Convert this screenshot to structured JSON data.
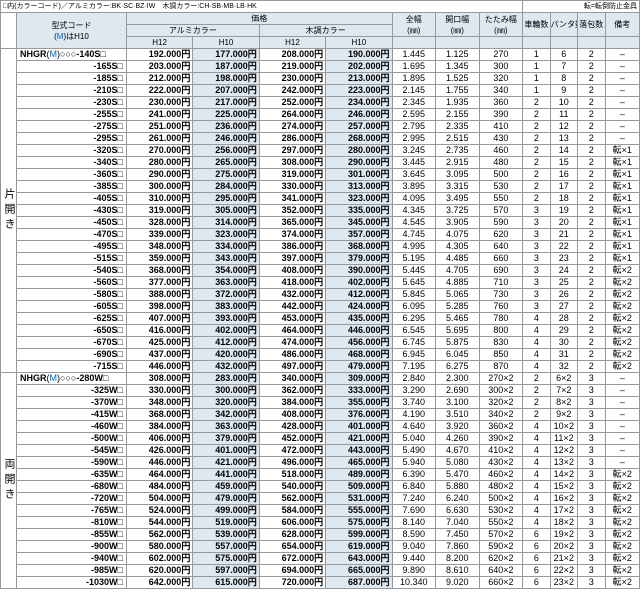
{
  "nk": "□内(カラーコード)／アルミカラー:BK·SC·BZ·IW　木調カラー:CH·SB·MB·LB·HK",
  "nkr": "転=転倒防止金具",
  "h": {
    "c1": "型式コード",
    "c1s": "(M)はH10",
    "c2": "価格",
    "c2a": "アルミカラー",
    "c2b": "木調カラー",
    "c2h1": "H12",
    "c2h2": "H10",
    "c3": "全幅",
    "c4": "開口幅",
    "c5": "たたみ幅",
    "c6": "車輪数",
    "c7": "パンタ数",
    "c8": "落包数",
    "c9": "備考",
    "mm": "(㎜)"
  },
  "s": [
    {
      "lbl": "片開き",
      "pre": "NHGR(M)○○○",
      "rows": [
        {
          "c": "-140S□",
          "p": [
            "192.000円",
            "177.000円",
            "208.000円",
            "190.000円"
          ],
          "d": [
            "1.445",
            "1.125",
            "270",
            "1",
            "6",
            "2",
            "–"
          ]
        },
        {
          "c": "-165S□",
          "p": [
            "203.000円",
            "187.000円",
            "219.000円",
            "202.000円"
          ],
          "d": [
            "1.695",
            "1.345",
            "300",
            "1",
            "7",
            "2",
            "–"
          ]
        },
        {
          "c": "-185S□",
          "p": [
            "212.000円",
            "198.000円",
            "230.000円",
            "213.000円"
          ],
          "d": [
            "1.895",
            "1.525",
            "320",
            "1",
            "8",
            "2",
            "–"
          ]
        },
        {
          "c": "-210S□",
          "p": [
            "222.000円",
            "207.000円",
            "242.000円",
            "223.000円"
          ],
          "d": [
            "2.145",
            "1.755",
            "340",
            "1",
            "9",
            "2",
            "–"
          ]
        },
        {
          "c": "-230S□",
          "p": [
            "230.000円",
            "217.000円",
            "252.000円",
            "234.000円"
          ],
          "d": [
            "2.345",
            "1.935",
            "360",
            "2",
            "10",
            "2",
            "–"
          ]
        },
        {
          "c": "-255S□",
          "p": [
            "241.000円",
            "225.000円",
            "264.000円",
            "246.000円"
          ],
          "d": [
            "2.595",
            "2.155",
            "390",
            "2",
            "11",
            "2",
            "–"
          ]
        },
        {
          "c": "-275S□",
          "p": [
            "251.000円",
            "236.000円",
            "274.000円",
            "257.000円"
          ],
          "d": [
            "2.795",
            "2.335",
            "410",
            "2",
            "12",
            "2",
            "–"
          ]
        },
        {
          "c": "-295S□",
          "p": [
            "261.000円",
            "246.000円",
            "286.000円",
            "268.000円"
          ],
          "d": [
            "2.995",
            "2.515",
            "430",
            "2",
            "13",
            "2",
            "–"
          ]
        },
        {
          "c": "-320S□",
          "p": [
            "270.000円",
            "256.000円",
            "297.000円",
            "280.000円"
          ],
          "d": [
            "3.245",
            "2.735",
            "460",
            "2",
            "14",
            "2",
            "転×1"
          ]
        },
        {
          "c": "-340S□",
          "p": [
            "280.000円",
            "265.000円",
            "308.000円",
            "290.000円"
          ],
          "d": [
            "3.445",
            "2.915",
            "480",
            "2",
            "15",
            "2",
            "転×1"
          ]
        },
        {
          "c": "-360S□",
          "p": [
            "290.000円",
            "275.000円",
            "319.000円",
            "301.000円"
          ],
          "d": [
            "3.645",
            "3.095",
            "500",
            "2",
            "16",
            "2",
            "転×1"
          ]
        },
        {
          "c": "-385S□",
          "p": [
            "300.000円",
            "284.000円",
            "330.000円",
            "313.000円"
          ],
          "d": [
            "3.895",
            "3.315",
            "530",
            "2",
            "17",
            "2",
            "転×1"
          ]
        },
        {
          "c": "-405S□",
          "p": [
            "310.000円",
            "295.000円",
            "341.000円",
            "323.000円"
          ],
          "d": [
            "4.095",
            "3.495",
            "550",
            "2",
            "18",
            "2",
            "転×1"
          ]
        },
        {
          "c": "-430S□",
          "p": [
            "319.000円",
            "305.000円",
            "352.000円",
            "335.000円"
          ],
          "d": [
            "4.345",
            "3.725",
            "570",
            "3",
            "19",
            "2",
            "転×1"
          ]
        },
        {
          "c": "-450S□",
          "p": [
            "328.000円",
            "314.000円",
            "365.000円",
            "345.000円"
          ],
          "d": [
            "4.545",
            "3.905",
            "590",
            "3",
            "20",
            "2",
            "転×1"
          ]
        },
        {
          "c": "-470S□",
          "p": [
            "339.000円",
            "323.000円",
            "374.000円",
            "357.000円"
          ],
          "d": [
            "4.745",
            "4.075",
            "620",
            "3",
            "21",
            "2",
            "転×1"
          ]
        },
        {
          "c": "-495S□",
          "p": [
            "348.000円",
            "334.000円",
            "386.000円",
            "368.000円"
          ],
          "d": [
            "4.995",
            "4.305",
            "640",
            "3",
            "22",
            "2",
            "転×1"
          ]
        },
        {
          "c": "-515S□",
          "p": [
            "359.000円",
            "343.000円",
            "397.000円",
            "379.000円"
          ],
          "d": [
            "5.195",
            "4.485",
            "660",
            "3",
            "23",
            "2",
            "転×1"
          ]
        },
        {
          "c": "-540S□",
          "p": [
            "368.000円",
            "354.000円",
            "408.000円",
            "390.000円"
          ],
          "d": [
            "5.445",
            "4.705",
            "690",
            "3",
            "24",
            "2",
            "転×2"
          ]
        },
        {
          "c": "-560S□",
          "p": [
            "377.000円",
            "363.000円",
            "418.000円",
            "402.000円"
          ],
          "d": [
            "5.645",
            "4.885",
            "710",
            "3",
            "25",
            "2",
            "転×2"
          ]
        },
        {
          "c": "-580S□",
          "p": [
            "388.000円",
            "372.000円",
            "432.000円",
            "412.000円"
          ],
          "d": [
            "5.845",
            "5.065",
            "730",
            "3",
            "26",
            "2",
            "転×2"
          ]
        },
        {
          "c": "-605S□",
          "p": [
            "398.000円",
            "383.000円",
            "442.000円",
            "424.000円"
          ],
          "d": [
            "6.095",
            "5.285",
            "760",
            "3",
            "27",
            "2",
            "転×2"
          ]
        },
        {
          "c": "-625S□",
          "p": [
            "407.000円",
            "393.000円",
            "453.000円",
            "435.000円"
          ],
          "d": [
            "6.295",
            "5.465",
            "780",
            "4",
            "28",
            "2",
            "転×2"
          ]
        },
        {
          "c": "-650S□",
          "p": [
            "416.000円",
            "402.000円",
            "464.000円",
            "446.000円"
          ],
          "d": [
            "6.545",
            "5.695",
            "800",
            "4",
            "29",
            "2",
            "転×2"
          ]
        },
        {
          "c": "-670S□",
          "p": [
            "425.000円",
            "412.000円",
            "474.000円",
            "456.000円"
          ],
          "d": [
            "6.745",
            "5.875",
            "830",
            "4",
            "30",
            "2",
            "転×2"
          ]
        },
        {
          "c": "-690S□",
          "p": [
            "437.000円",
            "420.000円",
            "486.000円",
            "468.000円"
          ],
          "d": [
            "6.945",
            "6.045",
            "850",
            "4",
            "31",
            "2",
            "転×2"
          ]
        },
        {
          "c": "-715S□",
          "p": [
            "446.000円",
            "432.000円",
            "497.000円",
            "479.000円"
          ],
          "d": [
            "7.195",
            "6.275",
            "870",
            "4",
            "32",
            "2",
            "転×2"
          ]
        }
      ]
    },
    {
      "lbl": "両開き",
      "pre": "NHGR(M)○○○",
      "rows": [
        {
          "c": "-280W□",
          "p": [
            "308.000円",
            "283.000円",
            "340.000円",
            "309.000円"
          ],
          "d": [
            "2.840",
            "2.300",
            "270×2",
            "2",
            "6×2",
            "3",
            "–"
          ]
        },
        {
          "c": "-325W□",
          "p": [
            "330.000円",
            "300.000円",
            "362.000円",
            "333.000円"
          ],
          "d": [
            "3.290",
            "2.690",
            "300×2",
            "2",
            "7×2",
            "3",
            "–"
          ]
        },
        {
          "c": "-370W□",
          "p": [
            "348.000円",
            "320.000円",
            "384.000円",
            "355.000円"
          ],
          "d": [
            "3.740",
            "3.100",
            "320×2",
            "2",
            "8×2",
            "3",
            "–"
          ]
        },
        {
          "c": "-415W□",
          "p": [
            "368.000円",
            "342.000円",
            "408.000円",
            "376.000円"
          ],
          "d": [
            "4.190",
            "3.510",
            "340×2",
            "2",
            "9×2",
            "3",
            "–"
          ]
        },
        {
          "c": "-460W□",
          "p": [
            "384.000円",
            "363.000円",
            "428.000円",
            "401.000円"
          ],
          "d": [
            "4.640",
            "3.920",
            "360×2",
            "4",
            "10×2",
            "3",
            "–"
          ]
        },
        {
          "c": "-500W□",
          "p": [
            "406.000円",
            "379.000円",
            "452.000円",
            "421.000円"
          ],
          "d": [
            "5.040",
            "4.260",
            "390×2",
            "4",
            "11×2",
            "3",
            "–"
          ]
        },
        {
          "c": "-545W□",
          "p": [
            "426.000円",
            "401.000円",
            "472.000円",
            "443.000円"
          ],
          "d": [
            "5.490",
            "4.670",
            "410×2",
            "4",
            "12×2",
            "3",
            "–"
          ]
        },
        {
          "c": "-590W□",
          "p": [
            "446.000円",
            "421.000円",
            "496.000円",
            "465.000円"
          ],
          "d": [
            "5.940",
            "5.080",
            "430×2",
            "4",
            "13×2",
            "3",
            "–"
          ]
        },
        {
          "c": "-635W□",
          "p": [
            "464.000円",
            "441.000円",
            "518.000円",
            "489.000円"
          ],
          "d": [
            "6.390",
            "5.470",
            "460×2",
            "4",
            "14×2",
            "3",
            "転×2"
          ]
        },
        {
          "c": "-680W□",
          "p": [
            "484.000円",
            "459.000円",
            "540.000円",
            "509.000円"
          ],
          "d": [
            "6.840",
            "5.880",
            "480×2",
            "4",
            "15×2",
            "3",
            "転×2"
          ]
        },
        {
          "c": "-720W□",
          "p": [
            "504.000円",
            "479.000円",
            "562.000円",
            "531.000円"
          ],
          "d": [
            "7.240",
            "6.240",
            "500×2",
            "4",
            "16×2",
            "3",
            "転×2"
          ]
        },
        {
          "c": "-765W□",
          "p": [
            "524.000円",
            "499.000円",
            "584.000円",
            "555.000円"
          ],
          "d": [
            "7.690",
            "6.630",
            "530×2",
            "4",
            "17×2",
            "3",
            "転×2"
          ]
        },
        {
          "c": "-810W□",
          "p": [
            "544.000円",
            "519.000円",
            "606.000円",
            "575.000円"
          ],
          "d": [
            "8.140",
            "7.040",
            "550×2",
            "4",
            "18×2",
            "3",
            "転×2"
          ]
        },
        {
          "c": "-855W□",
          "p": [
            "562.000円",
            "539.000円",
            "628.000円",
            "599.000円"
          ],
          "d": [
            "8.590",
            "7.450",
            "570×2",
            "6",
            "19×2",
            "3",
            "転×2"
          ]
        },
        {
          "c": "-900W□",
          "p": [
            "580.000円",
            "557.000円",
            "654.000円",
            "619.000円"
          ],
          "d": [
            "9.040",
            "7.860",
            "590×2",
            "6",
            "20×2",
            "3",
            "転×2"
          ]
        },
        {
          "c": "-940W□",
          "p": [
            "602.000円",
            "575.000円",
            "672.000円",
            "643.000円"
          ],
          "d": [
            "9.440",
            "8.200",
            "620×2",
            "6",
            "21×2",
            "3",
            "転×2"
          ]
        },
        {
          "c": "-985W□",
          "p": [
            "620.000円",
            "597.000円",
            "694.000円",
            "665.000円"
          ],
          "d": [
            "9.890",
            "8.610",
            "640×2",
            "6",
            "22×2",
            "3",
            "転×2"
          ]
        },
        {
          "c": "-1030W□",
          "p": [
            "642.000円",
            "615.000円",
            "720.000円",
            "687.000円"
          ],
          "d": [
            "10.340",
            "9.020",
            "660×2",
            "6",
            "23×2",
            "3",
            "転×2"
          ]
        }
      ]
    }
  ]
}
